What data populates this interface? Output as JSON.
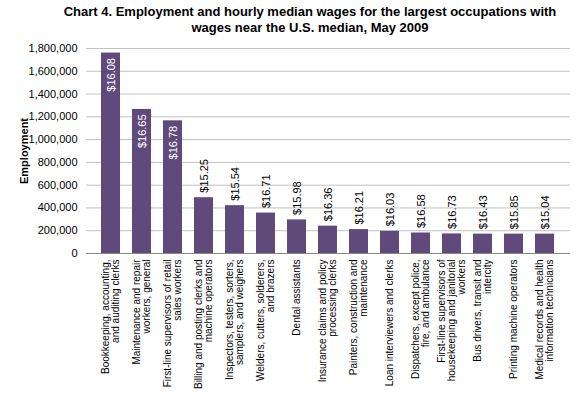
{
  "chart_data": {
    "type": "bar",
    "title": "Chart 4. Employment and hourly median wages for the largest occupations with wages near the U.S. median, May 2009",
    "y_label": "Employment",
    "categories": [
      "Bookkeeping, accounting, and auditing clerks",
      "Maintenance and repair workers, general",
      "First-line supervisors of retail sales workers",
      "Billing and posting clerks and machine operators",
      "Inspectors, testers, sorters, samplers, and weighers",
      "Welders, cutters, solderers, and brazers",
      "Dental assistants",
      "Insurance claims and policy processing clerks",
      "Painters, construction and maintenance",
      "Loan interviewers and clerks",
      "Dispatchers, except police, fire, and ambulance",
      "First-line supervisors of housekeeping and janitorial workers",
      "Bus drivers, transit and intercity",
      "Printing machine operators",
      "Medical records and health information technicians"
    ],
    "values": [
      1760000,
      1265000,
      1165000,
      490000,
      420000,
      355000,
      295000,
      240000,
      210000,
      195000,
      180000,
      172000,
      170000,
      170000,
      170000
    ],
    "wage_labels": [
      "$16.08",
      "$16.65",
      "$16.78",
      "$15.25",
      "$15.54",
      "$16.71",
      "$15.98",
      "$16.36",
      "$16.21",
      "$16.03",
      "$16.58",
      "$16.73",
      "$16.43",
      "$15.85",
      "$15.04"
    ],
    "color": "#604a7b",
    "ylim": [
      0,
      1800000
    ],
    "yticks": [
      0,
      {
        "value": 200000,
        "label": "200,000"
      },
      {
        "value": 400000,
        "label": "400,000"
      },
      {
        "value": 600000,
        "label": "600,000"
      },
      {
        "value": 800000,
        "label": "800,000"
      },
      {
        "value": 1000000,
        "label": "1,000,000"
      },
      {
        "value": 1200000,
        "label": "1,200,000"
      },
      {
        "value": 1400000,
        "label": "1,400,000"
      },
      {
        "value": 1600000,
        "label": "1,600,000"
      },
      {
        "value": 1800000,
        "label": "1,800,000"
      }
    ],
    "grid": true
  }
}
